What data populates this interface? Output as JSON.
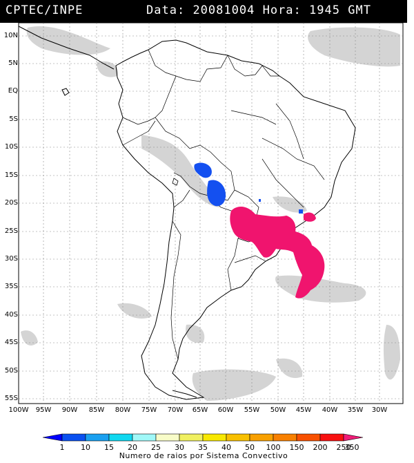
{
  "header": {
    "source": "CPTEC/INPE",
    "date_label": "Data:",
    "date": "20081004",
    "hour_label": "Hora:",
    "hour": "1945",
    "tz": "GMT"
  },
  "axes": {
    "lat_labels": [
      "10N",
      "5N",
      "EQ",
      "5S",
      "10S",
      "15S",
      "20S",
      "25S",
      "30S",
      "35S",
      "40S",
      "45S",
      "50S",
      "55S"
    ],
    "lon_labels": [
      "100W",
      "95W",
      "90W",
      "85W",
      "80W",
      "75W",
      "70W",
      "65W",
      "60W",
      "55W",
      "50W",
      "45W",
      "40W",
      "35W",
      "30W"
    ]
  },
  "colorbar": {
    "title": "Numero de raios por Sistema Convectivo",
    "labels": [
      "1",
      "10",
      "15",
      "20",
      "25",
      "30",
      "35",
      "40",
      "50",
      "100",
      "150",
      "200",
      "250",
      "350"
    ],
    "colors": [
      "#0000ff",
      "#0a50f0",
      "#1aa0f0",
      "#10d8f0",
      "#a0f8f8",
      "#f8fcc8",
      "#f0f060",
      "#f8e800",
      "#f8c000",
      "#f8a000",
      "#f88000",
      "#f85000",
      "#f81010",
      "#f01c78"
    ]
  },
  "colors": {
    "storm_blue": "#1450f0",
    "storm_magenta": "#f0146e",
    "cloud_gray": "#cfcfcf"
  }
}
